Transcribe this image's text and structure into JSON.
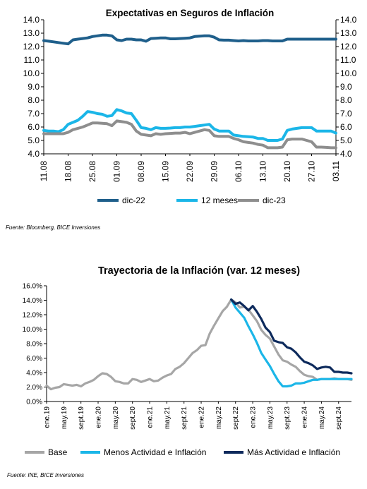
{
  "chart_data": [
    {
      "type": "line",
      "title": "Expectativas en Seguros de Inflación",
      "ylim": [
        4.0,
        14.0
      ],
      "ytick_step": 1.0,
      "yticks": [
        "4.0",
        "5.0",
        "6.0",
        "7.0",
        "8.0",
        "9.0",
        "10.0",
        "11.0",
        "12.0",
        "13.0",
        "14.0"
      ],
      "secondary_axis": true,
      "grid": false,
      "legend": "bottom",
      "x_labels": [
        "11.08",
        "18.08",
        "25.08",
        "01.09",
        "08.09",
        "15.09",
        "22.09",
        "29.09",
        "06.10",
        "13.10",
        "20.10",
        "27.10",
        "03.11"
      ],
      "x_label_index": [
        0,
        5,
        10,
        15,
        20,
        25,
        30,
        35,
        40,
        45,
        50,
        55,
        60
      ],
      "series": [
        {
          "name": "dic-22",
          "color": "#1f5f8b",
          "width": 4,
          "values": [
            12.45,
            12.4,
            12.35,
            12.3,
            12.25,
            12.2,
            12.5,
            12.55,
            12.6,
            12.65,
            12.75,
            12.8,
            12.85,
            12.85,
            12.8,
            12.5,
            12.45,
            12.55,
            12.55,
            12.5,
            12.5,
            12.4,
            12.6,
            12.62,
            12.65,
            12.65,
            12.58,
            12.58,
            12.6,
            12.62,
            12.65,
            12.75,
            12.78,
            12.8,
            12.8,
            12.7,
            12.5,
            12.48,
            12.48,
            12.45,
            12.42,
            12.45,
            12.42,
            12.42,
            12.42,
            12.45,
            12.45,
            12.42,
            12.42,
            12.42,
            12.55,
            12.55,
            12.55,
            12.55,
            12.55,
            12.55,
            12.55,
            12.55,
            12.55,
            12.55,
            12.55
          ]
        },
        {
          "name": "12 meses",
          "color": "#1bb6e8",
          "width": 4,
          "values": [
            5.75,
            5.7,
            5.7,
            5.65,
            5.8,
            6.2,
            6.35,
            6.5,
            6.8,
            7.15,
            7.1,
            7.0,
            6.95,
            6.8,
            6.85,
            7.3,
            7.2,
            7.05,
            7.0,
            6.5,
            5.95,
            5.9,
            5.8,
            5.95,
            5.9,
            5.9,
            5.92,
            5.95,
            5.95,
            6.0,
            6.0,
            6.05,
            6.1,
            6.15,
            6.2,
            5.85,
            5.7,
            5.7,
            5.7,
            5.4,
            5.35,
            5.3,
            5.28,
            5.25,
            5.15,
            5.15,
            5.0,
            5.0,
            5.0,
            5.1,
            5.75,
            5.85,
            5.9,
            5.95,
            5.95,
            5.95,
            5.7,
            5.7,
            5.7,
            5.7,
            5.55
          ]
        },
        {
          "name": "dic-23",
          "color": "#8e8e8e",
          "width": 4,
          "values": [
            5.5,
            5.5,
            5.5,
            5.5,
            5.5,
            5.6,
            5.8,
            5.9,
            6.0,
            6.15,
            6.3,
            6.3,
            6.28,
            6.25,
            6.1,
            6.45,
            6.4,
            6.35,
            6.2,
            5.7,
            5.45,
            5.4,
            5.35,
            5.5,
            5.45,
            5.5,
            5.52,
            5.55,
            5.55,
            5.6,
            5.5,
            5.6,
            5.7,
            5.8,
            5.75,
            5.35,
            5.3,
            5.3,
            5.3,
            5.15,
            5.05,
            4.9,
            4.85,
            4.8,
            4.7,
            4.65,
            4.45,
            4.45,
            4.45,
            4.5,
            5.05,
            5.1,
            5.1,
            5.1,
            5.0,
            4.9,
            4.5,
            4.5,
            4.48,
            4.45,
            4.45
          ]
        }
      ]
    },
    {
      "type": "line",
      "title": "Trayectoria de la Inflación (var. 12 meses)",
      "ylim": [
        0.0,
        16.0
      ],
      "ytick_step": 2.0,
      "yticks": [
        "0.0%",
        "2.0%",
        "4.0%",
        "6.0%",
        "8.0%",
        "10.0%",
        "12.0%",
        "14.0%",
        "16.0%"
      ],
      "grid": false,
      "legend": "bottom",
      "x_labels": [
        "ene.19",
        "may.19",
        "sept.19",
        "ene.20",
        "may.20",
        "sept.20",
        "ene.21",
        "may.21",
        "sept.21",
        "ene.22",
        "may.22",
        "sept.22",
        "ene.23",
        "may.23",
        "sept.23",
        "ene.24",
        "may.24",
        "sept.24"
      ],
      "x_label_index": [
        0,
        4,
        8,
        12,
        16,
        20,
        24,
        28,
        32,
        36,
        40,
        44,
        48,
        52,
        56,
        60,
        64,
        68
      ],
      "series": [
        {
          "name": "Base",
          "color": "#a6a6a6",
          "width": 3.2,
          "start_index": 0,
          "values": [
            2.2,
            1.7,
            1.9,
            2.0,
            2.4,
            2.3,
            2.2,
            2.3,
            2.1,
            2.5,
            2.7,
            3.0,
            3.5,
            3.9,
            3.8,
            3.4,
            2.8,
            2.7,
            2.5,
            2.5,
            3.1,
            3.0,
            2.7,
            2.9,
            3.1,
            2.8,
            2.9,
            3.3,
            3.6,
            3.8,
            4.5,
            4.8,
            5.3,
            6.0,
            6.7,
            7.1,
            7.7,
            7.8,
            9.4,
            10.5,
            11.5,
            12.5,
            13.1,
            14.1,
            13.7,
            13.0,
            13.1,
            12.7,
            11.9,
            11.1,
            9.9,
            9.2,
            8.7,
            7.6,
            6.5,
            5.7,
            5.5,
            5.1,
            4.8,
            4.2,
            3.7,
            3.5,
            3.4,
            3.0,
            3.1,
            3.1,
            3.1,
            3.2,
            3.1,
            3.1,
            3.1,
            3.0
          ]
        },
        {
          "name": "Menos Actividad e Inflación",
          "color": "#1bb6e8",
          "width": 3.2,
          "start_index": 43,
          "values": [
            14.1,
            13.0,
            12.3,
            11.6,
            10.4,
            9.3,
            8.1,
            6.7,
            5.8,
            4.9,
            3.8,
            2.8,
            2.1,
            2.1,
            2.2,
            2.5,
            2.5,
            2.6,
            2.8,
            3.0,
            3.0,
            3.1,
            3.1,
            3.1,
            3.1,
            3.1,
            3.1,
            3.1,
            3.1
          ]
        },
        {
          "name": "Más Actividad e Inflación",
          "color": "#0d2a5c",
          "width": 3.2,
          "start_index": 43,
          "values": [
            14.1,
            13.5,
            13.7,
            13.2,
            12.6,
            13.2,
            12.4,
            11.4,
            10.2,
            9.6,
            8.4,
            8.2,
            8.1,
            7.5,
            7.3,
            6.8,
            6.1,
            5.5,
            5.3,
            5.0,
            4.5,
            4.7,
            4.8,
            4.7,
            4.1,
            4.1,
            4.0,
            4.0,
            3.9
          ]
        }
      ]
    }
  ],
  "sources": [
    "Fuente: Bloomberg, BICE Inversiones",
    "Fuente: INE, BICE Inversiones"
  ]
}
